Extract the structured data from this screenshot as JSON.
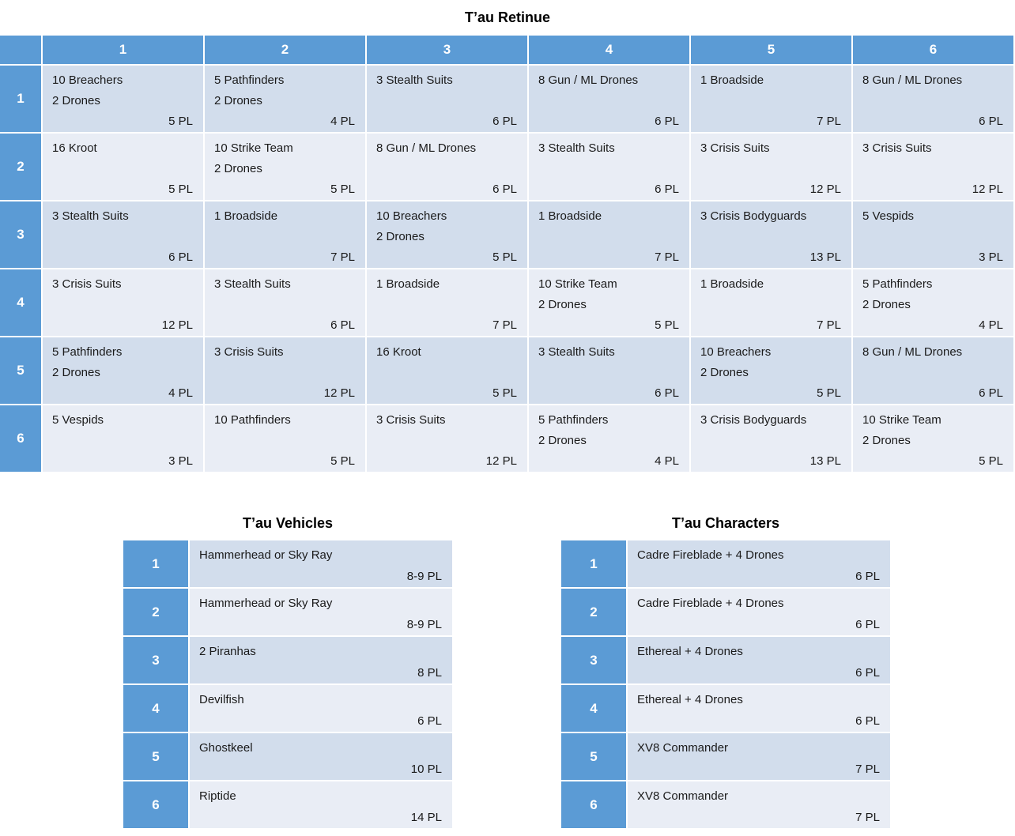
{
  "colors": {
    "header_blue": "#5B9BD5",
    "band_dark": "#D2DDEC",
    "band_light": "#E9EDF5"
  },
  "retinue": {
    "title": "T’au Retinue",
    "col_headers": [
      "1",
      "2",
      "3",
      "4",
      "5",
      "6"
    ],
    "row_headers": [
      "1",
      "2",
      "3",
      "4",
      "5",
      "6"
    ],
    "cells": [
      [
        {
          "unit": "10 Breachers\n2 Drones",
          "pl": "5 PL"
        },
        {
          "unit": "5 Pathfinders\n2 Drones",
          "pl": "4 PL"
        },
        {
          "unit": "3 Stealth Suits",
          "pl": "6 PL"
        },
        {
          "unit": "8 Gun / ML Drones",
          "pl": "6 PL"
        },
        {
          "unit": "1 Broadside",
          "pl": "7 PL"
        },
        {
          "unit": "8 Gun / ML Drones",
          "pl": "6 PL"
        }
      ],
      [
        {
          "unit": "16 Kroot",
          "pl": "5 PL"
        },
        {
          "unit": "10 Strike Team\n2 Drones",
          "pl": "5 PL"
        },
        {
          "unit": "8 Gun / ML Drones",
          "pl": "6 PL"
        },
        {
          "unit": "3 Stealth Suits",
          "pl": "6 PL"
        },
        {
          "unit": "3 Crisis Suits",
          "pl": "12 PL"
        },
        {
          "unit": "3 Crisis Suits",
          "pl": "12 PL"
        }
      ],
      [
        {
          "unit": "3 Stealth Suits",
          "pl": "6 PL"
        },
        {
          "unit": "1 Broadside",
          "pl": "7 PL"
        },
        {
          "unit": "10 Breachers\n2 Drones",
          "pl": "5 PL"
        },
        {
          "unit": "1 Broadside",
          "pl": "7 PL"
        },
        {
          "unit": "3 Crisis Bodyguards",
          "pl": "13 PL"
        },
        {
          "unit": "5 Vespids",
          "pl": "3 PL"
        }
      ],
      [
        {
          "unit": "3 Crisis Suits",
          "pl": "12 PL"
        },
        {
          "unit": "3 Stealth Suits",
          "pl": "6 PL"
        },
        {
          "unit": "1 Broadside",
          "pl": "7 PL"
        },
        {
          "unit": "10 Strike Team\n2 Drones",
          "pl": "5 PL"
        },
        {
          "unit": "1 Broadside",
          "pl": "7 PL"
        },
        {
          "unit": "5 Pathfinders\n2 Drones",
          "pl": "4 PL"
        }
      ],
      [
        {
          "unit": "5 Pathfinders\n2 Drones",
          "pl": "4 PL"
        },
        {
          "unit": "3 Crisis Suits",
          "pl": "12 PL"
        },
        {
          "unit": "16 Kroot",
          "pl": "5 PL"
        },
        {
          "unit": "3 Stealth Suits",
          "pl": "6 PL"
        },
        {
          "unit": "10 Breachers\n2 Drones",
          "pl": "5 PL"
        },
        {
          "unit": "8 Gun / ML Drones",
          "pl": "6 PL"
        }
      ],
      [
        {
          "unit": "5 Vespids",
          "pl": "3 PL"
        },
        {
          "unit": "10 Pathfinders",
          "pl": "5 PL"
        },
        {
          "unit": "3 Crisis Suits",
          "pl": "12 PL"
        },
        {
          "unit": "5 Pathfinders\n2 Drones",
          "pl": "4 PL"
        },
        {
          "unit": "3 Crisis Bodyguards",
          "pl": "13 PL"
        },
        {
          "unit": "10 Strike Team\n2 Drones",
          "pl": "5 PL"
        }
      ]
    ]
  },
  "vehicles": {
    "title": "T’au Vehicles",
    "rows": [
      {
        "num": "1",
        "unit": "Hammerhead or Sky Ray",
        "pl": "8-9 PL"
      },
      {
        "num": "2",
        "unit": "Hammerhead or Sky Ray",
        "pl": "8-9 PL"
      },
      {
        "num": "3",
        "unit": "2 Piranhas",
        "pl": "8 PL"
      },
      {
        "num": "4",
        "unit": "Devilfish",
        "pl": "6 PL"
      },
      {
        "num": "5",
        "unit": "Ghostkeel",
        "pl": "10 PL"
      },
      {
        "num": "6",
        "unit": "Riptide",
        "pl": "14 PL"
      }
    ]
  },
  "characters": {
    "title": "T’au Characters",
    "rows": [
      {
        "num": "1",
        "unit": "Cadre Fireblade + 4 Drones",
        "pl": "6 PL"
      },
      {
        "num": "2",
        "unit": "Cadre Fireblade + 4 Drones",
        "pl": "6 PL"
      },
      {
        "num": "3",
        "unit": "Ethereal + 4 Drones",
        "pl": "6 PL"
      },
      {
        "num": "4",
        "unit": "Ethereal + 4 Drones",
        "pl": "6 PL"
      },
      {
        "num": "5",
        "unit": "XV8 Commander",
        "pl": "7 PL"
      },
      {
        "num": "6",
        "unit": "XV8 Commander",
        "pl": "7 PL"
      }
    ]
  }
}
